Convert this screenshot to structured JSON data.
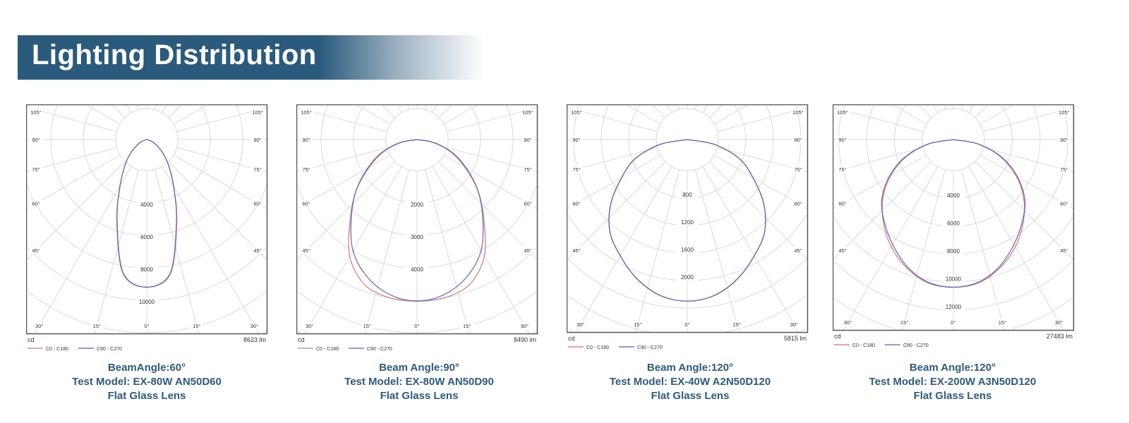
{
  "header": {
    "title": "Lighting Distribution"
  },
  "colors": {
    "banner": "#2b5b7c",
    "c0": "#d9706a",
    "c90": "#5b5bc4",
    "caption": "#2e5a7c"
  },
  "chart_data": [
    {
      "type": "polar",
      "unit_label": "cd",
      "flux": "8623 lm",
      "angle_labels": [
        "0°",
        "15°",
        "30°",
        "45°",
        "60°",
        "75°",
        "90°",
        "105°"
      ],
      "ring_step": 2000,
      "ring_labels": [
        "4000",
        "6000",
        "8000",
        "10000"
      ],
      "gamma": [
        0,
        10,
        20,
        30,
        40,
        50,
        60,
        70,
        80,
        90
      ],
      "series": [
        {
          "name": "C0 - C180",
          "values": [
            9100,
            8400,
            5400,
            3300,
            2100,
            1300,
            700,
            300,
            80,
            0
          ]
        },
        {
          "name": "C90 - C270",
          "values": [
            9100,
            8350,
            5350,
            3300,
            2100,
            1300,
            700,
            300,
            80,
            0
          ]
        }
      ]
    },
    {
      "type": "polar",
      "unit_label": "cd",
      "flux": "8490 lm",
      "angle_labels": [
        "0°",
        "15°",
        "30°",
        "45°",
        "60°",
        "75°",
        "90°",
        "105°"
      ],
      "ring_step": 1000,
      "ring_labels": [
        "2000",
        "3000",
        "4000"
      ],
      "gamma": [
        0,
        10,
        20,
        30,
        40,
        50,
        60,
        70,
        80,
        90
      ],
      "series": [
        {
          "name": "C0 - C180",
          "values": [
            4980,
            4950,
            4750,
            4150,
            3200,
            2450,
            1700,
            1100,
            500,
            0
          ]
        },
        {
          "name": "C90 - C270",
          "values": [
            4980,
            4850,
            4500,
            3950,
            3150,
            2450,
            1750,
            1150,
            520,
            0
          ]
        }
      ]
    },
    {
      "type": "polar",
      "unit_label": "cd",
      "flux": "5815 lm",
      "angle_labels": [
        "0°",
        "15°",
        "30°",
        "45°",
        "60°",
        "75°",
        "90°",
        "105°"
      ],
      "ring_step": 400,
      "ring_labels": [
        "800",
        "1200",
        "1600",
        "2000"
      ],
      "gamma": [
        0,
        10,
        20,
        30,
        40,
        50,
        60,
        70,
        80,
        90
      ],
      "series": [
        {
          "name": "C0 - C180",
          "values": [
            2350,
            2300,
            2150,
            1950,
            1750,
            1450,
            1100,
            800,
            400,
            0
          ]
        },
        {
          "name": "C90 - C270",
          "values": [
            2350,
            2300,
            2150,
            1950,
            1750,
            1450,
            1100,
            800,
            400,
            0
          ]
        }
      ]
    },
    {
      "type": "polar",
      "unit_label": "cd",
      "flux": "27483 lm",
      "angle_labels": [
        "0°",
        "15°",
        "30°",
        "45°",
        "60°",
        "75°",
        "90°",
        "105°"
      ],
      "ring_step": 2000,
      "ring_labels": [
        "4000",
        "6000",
        "8000",
        "10000",
        "12000"
      ],
      "gamma": [
        0,
        10,
        20,
        30,
        40,
        50,
        60,
        70,
        80,
        90
      ],
      "series": [
        {
          "name": "C0 - C180",
          "values": [
            10600,
            10450,
            9800,
            8900,
            7800,
            6600,
            5200,
            3600,
            1800,
            0
          ]
        },
        {
          "name": "C90 - C270",
          "values": [
            10600,
            10400,
            9700,
            8700,
            7700,
            6700,
            5300,
            3700,
            1800,
            0
          ]
        }
      ]
    }
  ],
  "captions": [
    {
      "beam": "BeamAngle:60°",
      "model": "Test Model: EX-80W AN50D60",
      "lens": "Flat Glass Lens"
    },
    {
      "beam": "Beam Angle:90°",
      "model": "Test Model: EX-80W AN50D90",
      "lens": "Flat Glass Lens"
    },
    {
      "beam": "Beam Angle:120°",
      "model": "Test Model: EX-40W A2N50D120",
      "lens": "Flat Glass Lens"
    },
    {
      "beam": "Beam Angle:120°",
      "model": "Test Model: EX-200W A3N50D120",
      "lens": "Flat Glass Lens"
    }
  ]
}
